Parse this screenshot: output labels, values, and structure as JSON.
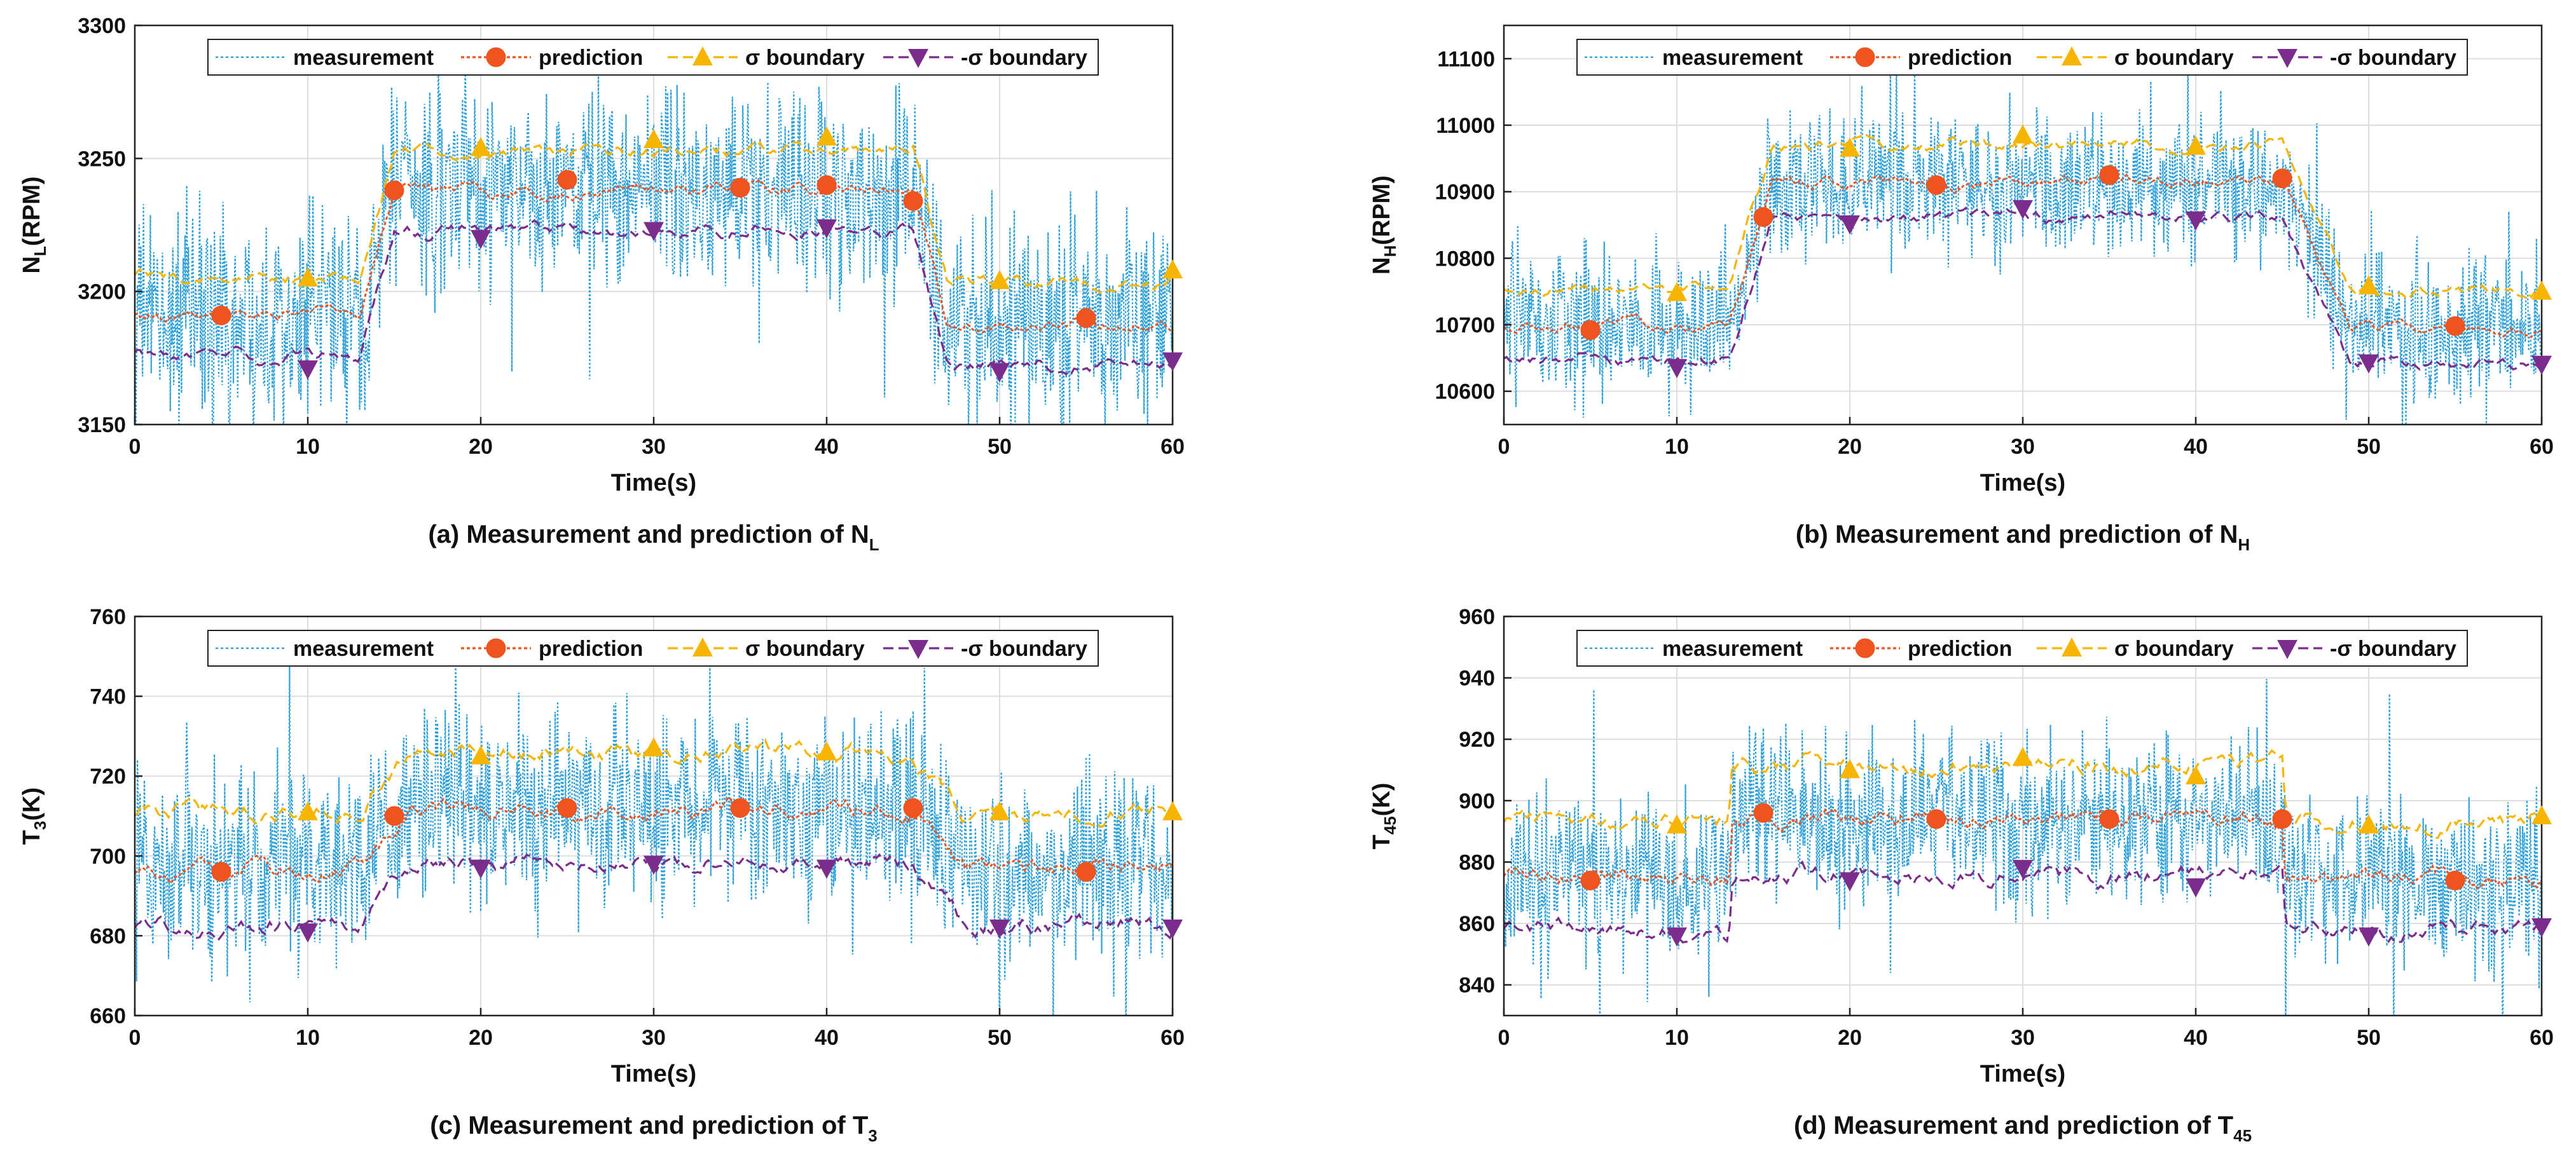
{
  "chart_data": [
    {
      "type": "line",
      "panel": "a",
      "caption_main": "(a) Measurement and prediction of N",
      "caption_sub": "L",
      "xlabel": "Time(s)",
      "ylabel_main": "N",
      "ylabel_sub": "L",
      "ylabel_unit": "(RPM)",
      "xlim": [
        0,
        60
      ],
      "ylim": [
        3150,
        3300
      ],
      "xticks": [
        0,
        10,
        20,
        30,
        40,
        50,
        60
      ],
      "yticks": [
        3150,
        3200,
        3250,
        3300
      ],
      "grid": true,
      "legend_position": "top",
      "legend": [
        "measurement",
        "prediction",
        "σ boundary",
        "-σ boundary"
      ],
      "steps": [
        {
          "t": 13,
          "dur": 2
        },
        {
          "t": 45,
          "dur": 2
        }
      ],
      "levels": [
        3191,
        3238,
        3188
      ],
      "sigma": 15,
      "noise": 28,
      "spike": 60,
      "series": [
        {
          "name": "measurement",
          "kind": "noisy"
        },
        {
          "name": "prediction",
          "offset": 0,
          "markers": [
            [
              5,
              3191
            ],
            [
              15,
              3238
            ],
            [
              25,
              3242
            ],
            [
              35,
              3239
            ],
            [
              40,
              3240
            ],
            [
              45,
              3234
            ],
            [
              55,
              3190
            ]
          ]
        },
        {
          "name": "σ boundary",
          "offset": 15,
          "markers": [
            [
              10,
              3205
            ],
            [
              20,
              3254
            ],
            [
              30,
              3257
            ],
            [
              40,
              3258
            ],
            [
              50,
              3204
            ],
            [
              60,
              3208
            ]
          ]
        },
        {
          "name": "-σ boundary",
          "offset": -15,
          "markers": [
            [
              10,
              3171
            ],
            [
              20,
              3220
            ],
            [
              30,
              3223
            ],
            [
              40,
              3224
            ],
            [
              50,
              3170
            ],
            [
              60,
              3174
            ]
          ]
        }
      ]
    },
    {
      "type": "line",
      "panel": "b",
      "caption_main": "(b) Measurement and prediction of N",
      "caption_sub": "H",
      "xlabel": "Time(s)",
      "ylabel_main": "N",
      "ylabel_sub": "H",
      "ylabel_unit": "(RPM)",
      "xlim": [
        0,
        60
      ],
      "ylim": [
        10550,
        11150
      ],
      "xticks": [
        0,
        10,
        20,
        30,
        40,
        50,
        60
      ],
      "yticks": [
        10600,
        10700,
        10800,
        10900,
        11000,
        11100
      ],
      "grid": true,
      "legend_position": "top",
      "legend": [
        "measurement",
        "prediction",
        "σ boundary",
        "-σ boundary"
      ],
      "steps": [
        {
          "t": 13,
          "dur": 2.5
        },
        {
          "t": 45,
          "dur": 4
        }
      ],
      "levels": [
        10700,
        10915,
        10695
      ],
      "sigma": 55,
      "noise": 80,
      "spike": 160,
      "series": [
        {
          "name": "measurement",
          "kind": "noisy"
        },
        {
          "name": "prediction",
          "offset": 0,
          "markers": [
            [
              5,
              10692
            ],
            [
              15,
              10862
            ],
            [
              25,
              10910
            ],
            [
              35,
              10925
            ],
            [
              45,
              10920
            ],
            [
              55,
              10698
            ]
          ]
        },
        {
          "name": "σ boundary",
          "offset": 55,
          "markers": [
            [
              10,
              10748
            ],
            [
              20,
              10965
            ],
            [
              30,
              10985
            ],
            [
              40,
              10968
            ],
            [
              50,
              10758
            ],
            [
              60,
              10750
            ]
          ]
        },
        {
          "name": "-σ boundary",
          "offset": -55,
          "markers": [
            [
              10,
              10636
            ],
            [
              20,
              10852
            ],
            [
              30,
              10875
            ],
            [
              40,
              10858
            ],
            [
              50,
              10643
            ],
            [
              60,
              10641
            ]
          ]
        }
      ]
    },
    {
      "type": "line",
      "panel": "c",
      "caption_main": "(c) Measurement and prediction of T",
      "caption_sub": "3",
      "xlabel": "Time(s)",
      "ylabel_main": "T",
      "ylabel_sub": "3",
      "ylabel_unit": "(K)",
      "xlim": [
        0,
        60
      ],
      "ylim": [
        660,
        760
      ],
      "xticks": [
        0,
        10,
        20,
        30,
        40,
        50,
        60
      ],
      "yticks": [
        660,
        680,
        700,
        720,
        740,
        760
      ],
      "grid": true,
      "legend_position": "top",
      "legend": [
        "measurement",
        "prediction",
        "σ boundary",
        "-σ boundary"
      ],
      "steps": [
        {
          "t": 13,
          "dur": 3
        },
        {
          "t": 45,
          "dur": 3
        }
      ],
      "levels": [
        697,
        712,
        697
      ],
      "sigma": 14,
      "noise": 17,
      "spike": 40,
      "series": [
        {
          "name": "measurement",
          "kind": "noisy"
        },
        {
          "name": "prediction",
          "offset": 0,
          "markers": [
            [
              5,
              696
            ],
            [
              15,
              710
            ],
            [
              25,
              712
            ],
            [
              35,
              712
            ],
            [
              45,
              712
            ],
            [
              55,
              696
            ]
          ]
        },
        {
          "name": "σ boundary",
          "offset": 14,
          "markers": [
            [
              10,
              711
            ],
            [
              20,
              725
            ],
            [
              30,
              727
            ],
            [
              40,
              726
            ],
            [
              50,
              711
            ],
            [
              60,
              711
            ]
          ]
        },
        {
          "name": "-σ boundary",
          "offset": -14,
          "markers": [
            [
              10,
              681
            ],
            [
              20,
              697
            ],
            [
              30,
              698
            ],
            [
              40,
              697
            ],
            [
              50,
              682
            ],
            [
              60,
              682
            ]
          ]
        }
      ]
    },
    {
      "type": "line",
      "panel": "d",
      "caption_main": "(d) Measurement and prediction of T",
      "caption_sub": "45",
      "xlabel": "Time(s)",
      "ylabel_main": "T",
      "ylabel_sub": "45",
      "ylabel_unit": "(K)",
      "xlim": [
        0,
        60
      ],
      "ylim": [
        830,
        960
      ],
      "xticks": [
        0,
        10,
        20,
        30,
        40,
        50,
        60
      ],
      "yticks": [
        840,
        860,
        880,
        900,
        920,
        940,
        960
      ],
      "grid": true,
      "legend_position": "top",
      "legend": [
        "measurement",
        "prediction",
        "σ boundary",
        "-σ boundary"
      ],
      "steps": [
        {
          "t": 13,
          "dur": 0.2
        },
        {
          "t": 45,
          "dur": 0.2
        }
      ],
      "levels": [
        875,
        894,
        875
      ],
      "sigma": 18,
      "noise": 20,
      "spike": 50,
      "series": [
        {
          "name": "measurement",
          "kind": "noisy"
        },
        {
          "name": "prediction",
          "offset": 0,
          "markers": [
            [
              5,
              874
            ],
            [
              15,
              896
            ],
            [
              25,
              894
            ],
            [
              35,
              894
            ],
            [
              45,
              894
            ],
            [
              55,
              874
            ]
          ]
        },
        {
          "name": "σ boundary",
          "offset": 18,
          "markers": [
            [
              10,
              892
            ],
            [
              20,
              910
            ],
            [
              30,
              914
            ],
            [
              40,
              908
            ],
            [
              50,
              892
            ],
            [
              60,
              895
            ]
          ]
        },
        {
          "name": "-σ boundary",
          "offset": -18,
          "markers": [
            [
              10,
              856
            ],
            [
              20,
              874
            ],
            [
              30,
              878
            ],
            [
              40,
              872
            ],
            [
              50,
              856
            ],
            [
              60,
              859
            ]
          ]
        }
      ]
    }
  ],
  "colors": {
    "measurement": "#2b9fd9",
    "prediction": "#f0541e",
    "sigma_plus": "#f7b500",
    "sigma_minus": "#7b2d8e",
    "grid": "#dddddd",
    "axis": "#222222"
  }
}
